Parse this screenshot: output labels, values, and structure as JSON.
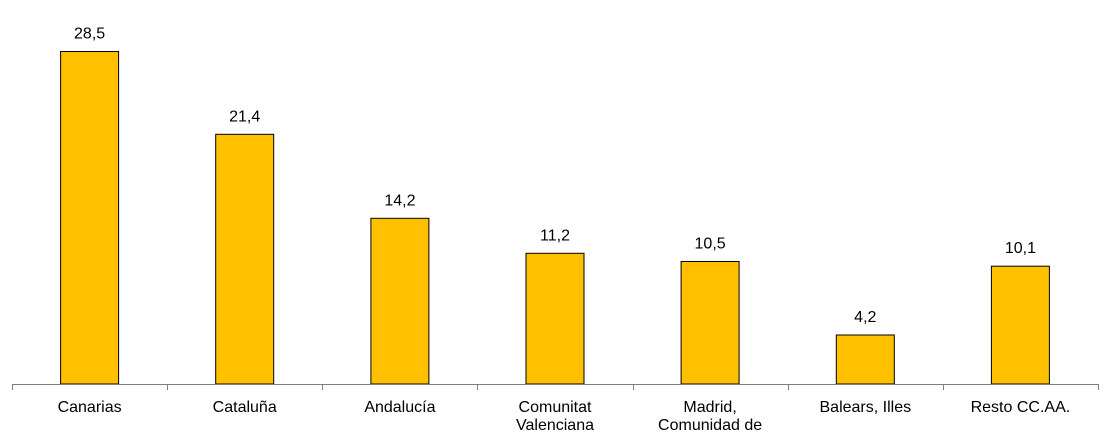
{
  "chart_data": {
    "type": "bar",
    "categories": [
      [
        "Canarias"
      ],
      [
        "Cataluña"
      ],
      [
        "Andalucía"
      ],
      [
        "Comunitat",
        "Valenciana"
      ],
      [
        "Madrid,",
        "Comunidad de"
      ],
      [
        "Balears, Illes"
      ],
      [
        "Resto CC.AA."
      ]
    ],
    "values": [
      28.5,
      21.4,
      14.2,
      11.2,
      10.5,
      4.2,
      10.1
    ],
    "value_labels": [
      "28,5",
      "21,4",
      "14,2",
      "11,2",
      "10,5",
      "4,2",
      "10,1"
    ],
    "title": "",
    "xlabel": "",
    "ylabel": "",
    "ylim": [
      0,
      30
    ],
    "grid": false,
    "legend": "none",
    "bar_color": "#FFC000",
    "bar_edge_color": "#000000",
    "axis_color": "#7F7F7F"
  }
}
